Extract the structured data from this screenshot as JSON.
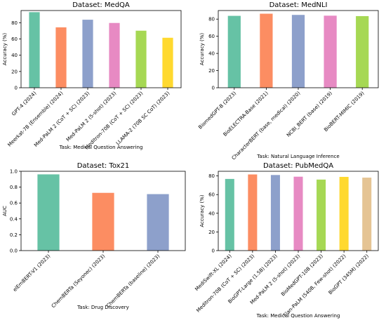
{
  "chart_data": [
    {
      "type": "bar",
      "title": "Dataset: MedQA",
      "xlabel": "Task: Medical Question Answering",
      "ylabel": "Accuracy (%)",
      "ylim": [
        0,
        95
      ],
      "yticks": [
        0,
        20,
        40,
        60,
        80
      ],
      "grid": false,
      "categories": [
        "GPT-4 (2024)",
        "Meerkat-7B (Ensemble) (2024)",
        "Med-PaLM 2 (CoT + SC) (2023)",
        "Med-PaLM 2 (5-shot) (2023)",
        "Meditron-70B (CoT + SC) (2023)",
        "LLAMA-2 (70B SC CoT) (2023)"
      ],
      "values": [
        93,
        74.3,
        83.7,
        79.7,
        70.2,
        61.5
      ],
      "colors": [
        "#66c2a5",
        "#fc8d62",
        "#8da0cb",
        "#e78ac3",
        "#a6d854",
        "#ffd92f"
      ]
    },
    {
      "type": "bar",
      "title": "Dataset: MedNLI",
      "xlabel": "Task: Natural Language Inference",
      "ylabel": "Accuracy (%)",
      "ylim": [
        0,
        90
      ],
      "yticks": [
        0,
        20,
        40,
        60,
        80
      ],
      "grid": false,
      "categories": [
        "BiomedGPT-B (2023)",
        "BioELECTRA-Base (2021)",
        "CharacterBERT (base, medical) (2020)",
        "NCBI_BERT (base) (2019)",
        "BioBERT-MIMIC (2019)"
      ],
      "values": [
        83.8,
        86.3,
        84.9,
        84.0,
        83.5
      ],
      "colors": [
        "#66c2a5",
        "#fc8d62",
        "#8da0cb",
        "#e78ac3",
        "#a6d854"
      ]
    },
    {
      "type": "bar",
      "title": "Dataset: Tox21",
      "xlabel": "Task: Drug Discovery",
      "ylabel": "AUC",
      "ylim": [
        0,
        1.0
      ],
      "yticks": [
        0.0,
        0.2,
        0.4,
        0.6,
        0.8,
        1.0
      ],
      "grid": false,
      "categories": [
        "elEmBERT-V1 (2023)",
        "ChemBERTa (Seyonec) (2023)",
        "ChemBERTa (baseline) (2023)"
      ],
      "values": [
        0.961,
        0.728,
        0.712
      ],
      "colors": [
        "#66c2a5",
        "#fc8d62",
        "#8da0cb"
      ]
    },
    {
      "type": "bar",
      "title": "Dataset: PubMedQA",
      "xlabel": "Task: Medical Question Answering",
      "ylabel": "Accuracy (%)",
      "ylim": [
        0,
        85
      ],
      "yticks": [
        0,
        20,
        40,
        60,
        80
      ],
      "grid": false,
      "categories": [
        "MediSwift-XL (2024)",
        "Meditron-70B (CoT + SC) (2023)",
        "BioGPT-Large (1.5B) (2023)",
        "Med-PaLM 2 (5-shot) (2023)",
        "BioMedGPT-10B (2023)",
        "Flan-PaLM (540B, Few-shot) (2022)",
        "BioGPT (345M) (2022)"
      ],
      "values": [
        76.8,
        81.6,
        81.0,
        79.2,
        76.1,
        79.0,
        78.2
      ],
      "colors": [
        "#66c2a5",
        "#fc8d62",
        "#8da0cb",
        "#e78ac3",
        "#a6d854",
        "#ffd92f",
        "#e5c494"
      ]
    }
  ]
}
